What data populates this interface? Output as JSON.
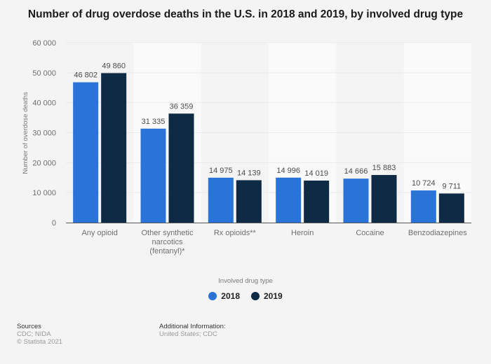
{
  "title": "Number of drug overdose deaths in the U.S. in 2018 and 2019, by involved drug type",
  "colors": {
    "s2018": "#2a74d9",
    "s2019": "#0f2a44",
    "grid": "#dcdcdc",
    "band": "#fafafa",
    "axis": "#555555"
  },
  "chart_data": {
    "type": "bar",
    "title": "Number of drug overdose deaths in the U.S. in 2018 and 2019, by involved drug type",
    "xlabel": "Involved drug type",
    "ylabel": "Number of overdose deaths",
    "ylim": [
      0,
      60000
    ],
    "yticks": [
      0,
      10000,
      20000,
      30000,
      40000,
      50000,
      60000
    ],
    "ytick_labels": [
      "0",
      "10 000",
      "20 000",
      "30 000",
      "40 000",
      "50 000",
      "60 000"
    ],
    "grid": true,
    "legend_position": "bottom-center",
    "categories": [
      [
        "Any opioid"
      ],
      [
        "Other synthetic",
        "narcotics",
        "(fentanyl)*"
      ],
      [
        "Rx opioids**"
      ],
      [
        "Heroin"
      ],
      [
        "Cocaine"
      ],
      [
        "Benzodiazepines"
      ]
    ],
    "series": [
      {
        "name": "2018",
        "values": [
          46802,
          31335,
          14975,
          14996,
          14666,
          10724
        ],
        "labels": [
          "46 802",
          "31 335",
          "14 975",
          "14 996",
          "14 666",
          "10 724"
        ]
      },
      {
        "name": "2019",
        "values": [
          49860,
          36359,
          14139,
          14019,
          15883,
          9711
        ],
        "labels": [
          "49 860",
          "36 359",
          "14 139",
          "14 019",
          "15 883",
          "9 711"
        ]
      }
    ]
  },
  "legend": {
    "item_2018": "2018",
    "item_2019": "2019"
  },
  "footer": {
    "sources_title": "Sources",
    "sources_line1": "CDC; NIDA",
    "sources_line2": "© Statista 2021",
    "additional_title": "Additional Information:",
    "additional_line1": "United States; CDC"
  }
}
